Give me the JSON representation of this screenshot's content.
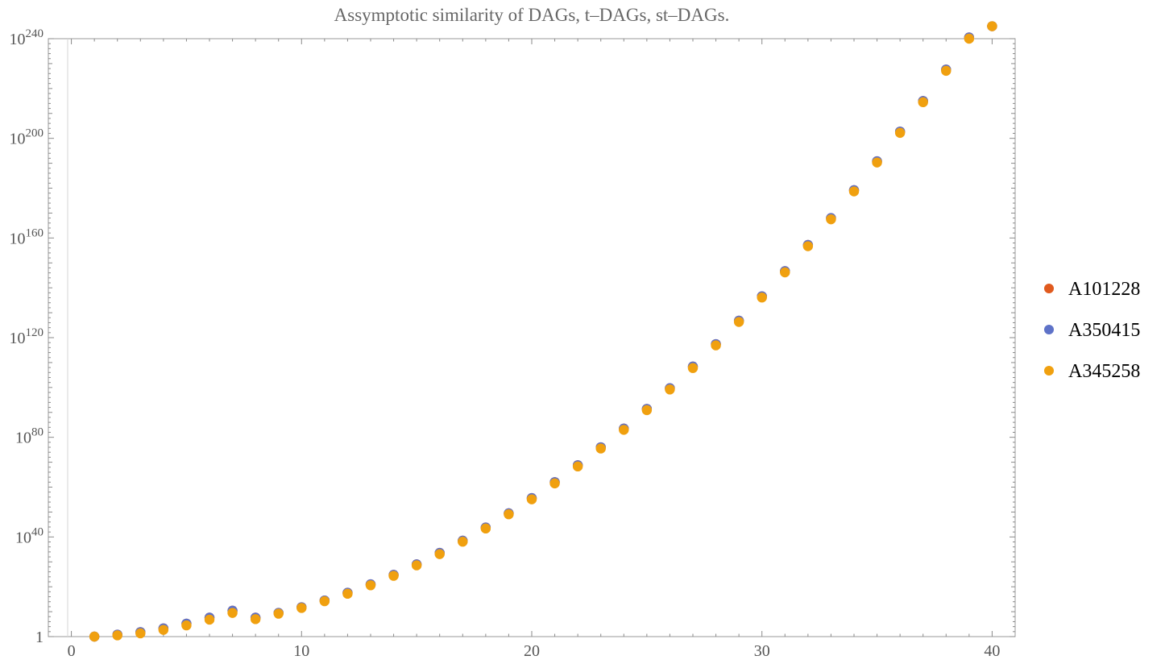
{
  "chart_data": {
    "type": "scatter",
    "title": "Assymptotic similarity of DAGs, t–DAGs, st–DAGs.",
    "xlabel": "",
    "ylabel": "",
    "xlim": [
      -1,
      41
    ],
    "ylim_log10": [
      0,
      240
    ],
    "y_scale": "log",
    "x_ticks": [
      0,
      10,
      20,
      30,
      40
    ],
    "y_ticks_log10": [
      0,
      40,
      80,
      120,
      160,
      200,
      240
    ],
    "y_tick_labels": [
      {
        "base": "1",
        "exp": ""
      },
      {
        "base": "10",
        "exp": "40"
      },
      {
        "base": "10",
        "exp": "80"
      },
      {
        "base": "10",
        "exp": "120"
      },
      {
        "base": "10",
        "exp": "160"
      },
      {
        "base": "10",
        "exp": "200"
      },
      {
        "base": "10",
        "exp": "240"
      }
    ],
    "grid": false,
    "legend_position": "right",
    "x": [
      1,
      2,
      3,
      4,
      5,
      6,
      7,
      8,
      9,
      10,
      11,
      12,
      13,
      14,
      15,
      16,
      17,
      18,
      19,
      20,
      21,
      22,
      23,
      24,
      25,
      26,
      27,
      28,
      29,
      30,
      31,
      32,
      33,
      34,
      35,
      36,
      37,
      38,
      39,
      40
    ],
    "series": [
      {
        "name": "A101228",
        "color": "#e05a1e",
        "log10_values": [
          0,
          0.8,
          1.8,
          3.3,
          5.2,
          7.6,
          10.4,
          7.6,
          9.5,
          11.8,
          14.5,
          17.6,
          21.0,
          24.8,
          29.0,
          33.6,
          38.5,
          43.8,
          49.5,
          55.6,
          62.0,
          68.8,
          76.0,
          83.5,
          91.4,
          99.7,
          108.4,
          117.4,
          126.8,
          136.6,
          146.7,
          157.2,
          168.0,
          179.2,
          190.8,
          202.7,
          215.0,
          227.6,
          240.5,
          253.9
        ]
      },
      {
        "name": "A350415",
        "color": "#5e72c8",
        "log10_values": [
          0,
          0.8,
          1.8,
          3.3,
          5.2,
          7.6,
          10.4,
          7.6,
          9.5,
          11.8,
          14.5,
          17.6,
          21.0,
          24.8,
          29.0,
          33.6,
          38.5,
          43.8,
          49.5,
          55.6,
          62.0,
          68.8,
          76.0,
          83.5,
          91.4,
          99.7,
          108.4,
          117.4,
          126.8,
          136.6,
          146.7,
          157.2,
          168.0,
          179.2,
          190.8,
          202.7,
          215.0,
          227.6,
          240.5,
          253.9
        ]
      },
      {
        "name": "A345258",
        "color": "#f0a00f",
        "log10_values": [
          0,
          0.5,
          1.3,
          2.7,
          4.5,
          6.8,
          9.5,
          7.0,
          9.2,
          11.5,
          14.2,
          17.2,
          20.6,
          24.4,
          28.6,
          33.1,
          38.1,
          43.4,
          49.1,
          55.1,
          61.5,
          68.3,
          75.5,
          83.0,
          90.9,
          99.2,
          107.8,
          116.9,
          126.3,
          136.1,
          146.2,
          156.7,
          167.5,
          178.7,
          190.3,
          202.2,
          214.5,
          227.1,
          240.0,
          253.4
        ]
      }
    ]
  }
}
